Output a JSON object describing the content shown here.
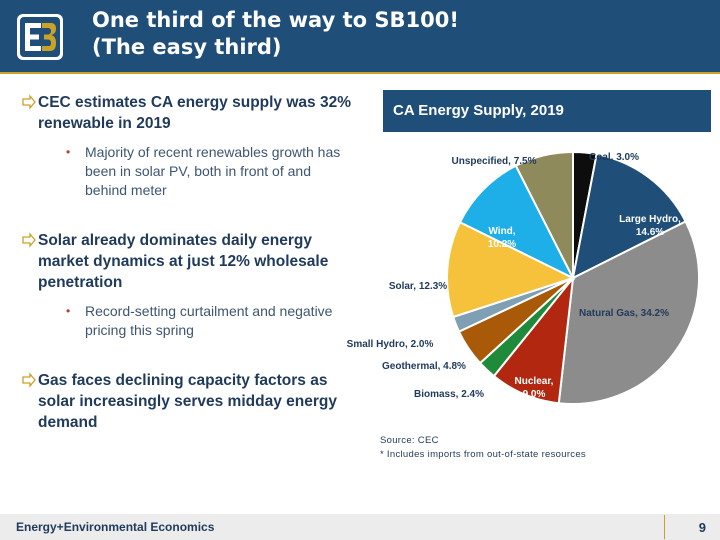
{
  "header": {
    "title_line1": "One third of the way to SB100!",
    "title_line2": "(The easy third)"
  },
  "bullets": [
    {
      "level": 1,
      "text": "CEC estimates CA energy supply was 32% renewable in 2019"
    },
    {
      "level": 2,
      "text": "Majority of recent renewables growth has been in solar PV, both in front of and behind meter"
    },
    {
      "level": 1,
      "text": "Solar already dominates daily energy market dynamics at just 12% wholesale penetration"
    },
    {
      "level": 2,
      "text": "Record-setting curtailment and negative pricing this spring"
    },
    {
      "level": 1,
      "text": "Gas faces declining capacity factors as solar increasingly serves midday energy demand"
    }
  ],
  "chart_data": {
    "type": "pie",
    "title": "CA Energy Supply, 2019",
    "slices": [
      {
        "label": "Coal",
        "value": 3.0,
        "display": "Coal, 3.0%",
        "color": "#0d0d0d"
      },
      {
        "label": "Large Hydro",
        "value": 14.6,
        "display": "Large Hydro, 14.6%",
        "color": "#1f4e79"
      },
      {
        "label": "Natural Gas",
        "value": 34.2,
        "display": "Natural Gas, 34.2%",
        "color": "#8c8c8c"
      },
      {
        "label": "Nuclear",
        "value": 9.0,
        "display": "Nuclear, 9.0%",
        "color": "#b22710"
      },
      {
        "label": "Biomass",
        "value": 2.4,
        "display": "Biomass, 2.4%",
        "color": "#1e8a3a"
      },
      {
        "label": "Geothermal",
        "value": 4.8,
        "display": "Geothermal, 4.8%",
        "color": "#a85a08"
      },
      {
        "label": "Small Hydro",
        "value": 2.0,
        "display": "Small Hydro, 2.0%",
        "color": "#7f9fb5"
      },
      {
        "label": "Solar",
        "value": 12.3,
        "display": "Solar, 12.3%",
        "color": "#f7c23b"
      },
      {
        "label": "Wind",
        "value": 10.2,
        "display": "Wind, 10.2%",
        "color": "#1eaee8"
      },
      {
        "label": "Unspecified",
        "value": 7.5,
        "display": "Unspecified, 7.5%",
        "color": "#8f8a5c"
      }
    ]
  },
  "source": {
    "line1": "Source: CEC",
    "line2": "* Includes imports from out-of-state resources"
  },
  "footer": {
    "company": "Energy+Environmental Economics",
    "page_number": "9"
  },
  "colors": {
    "header_bg": "#1f4e79",
    "accent": "#c9a227",
    "text": "#1f3a5a"
  }
}
